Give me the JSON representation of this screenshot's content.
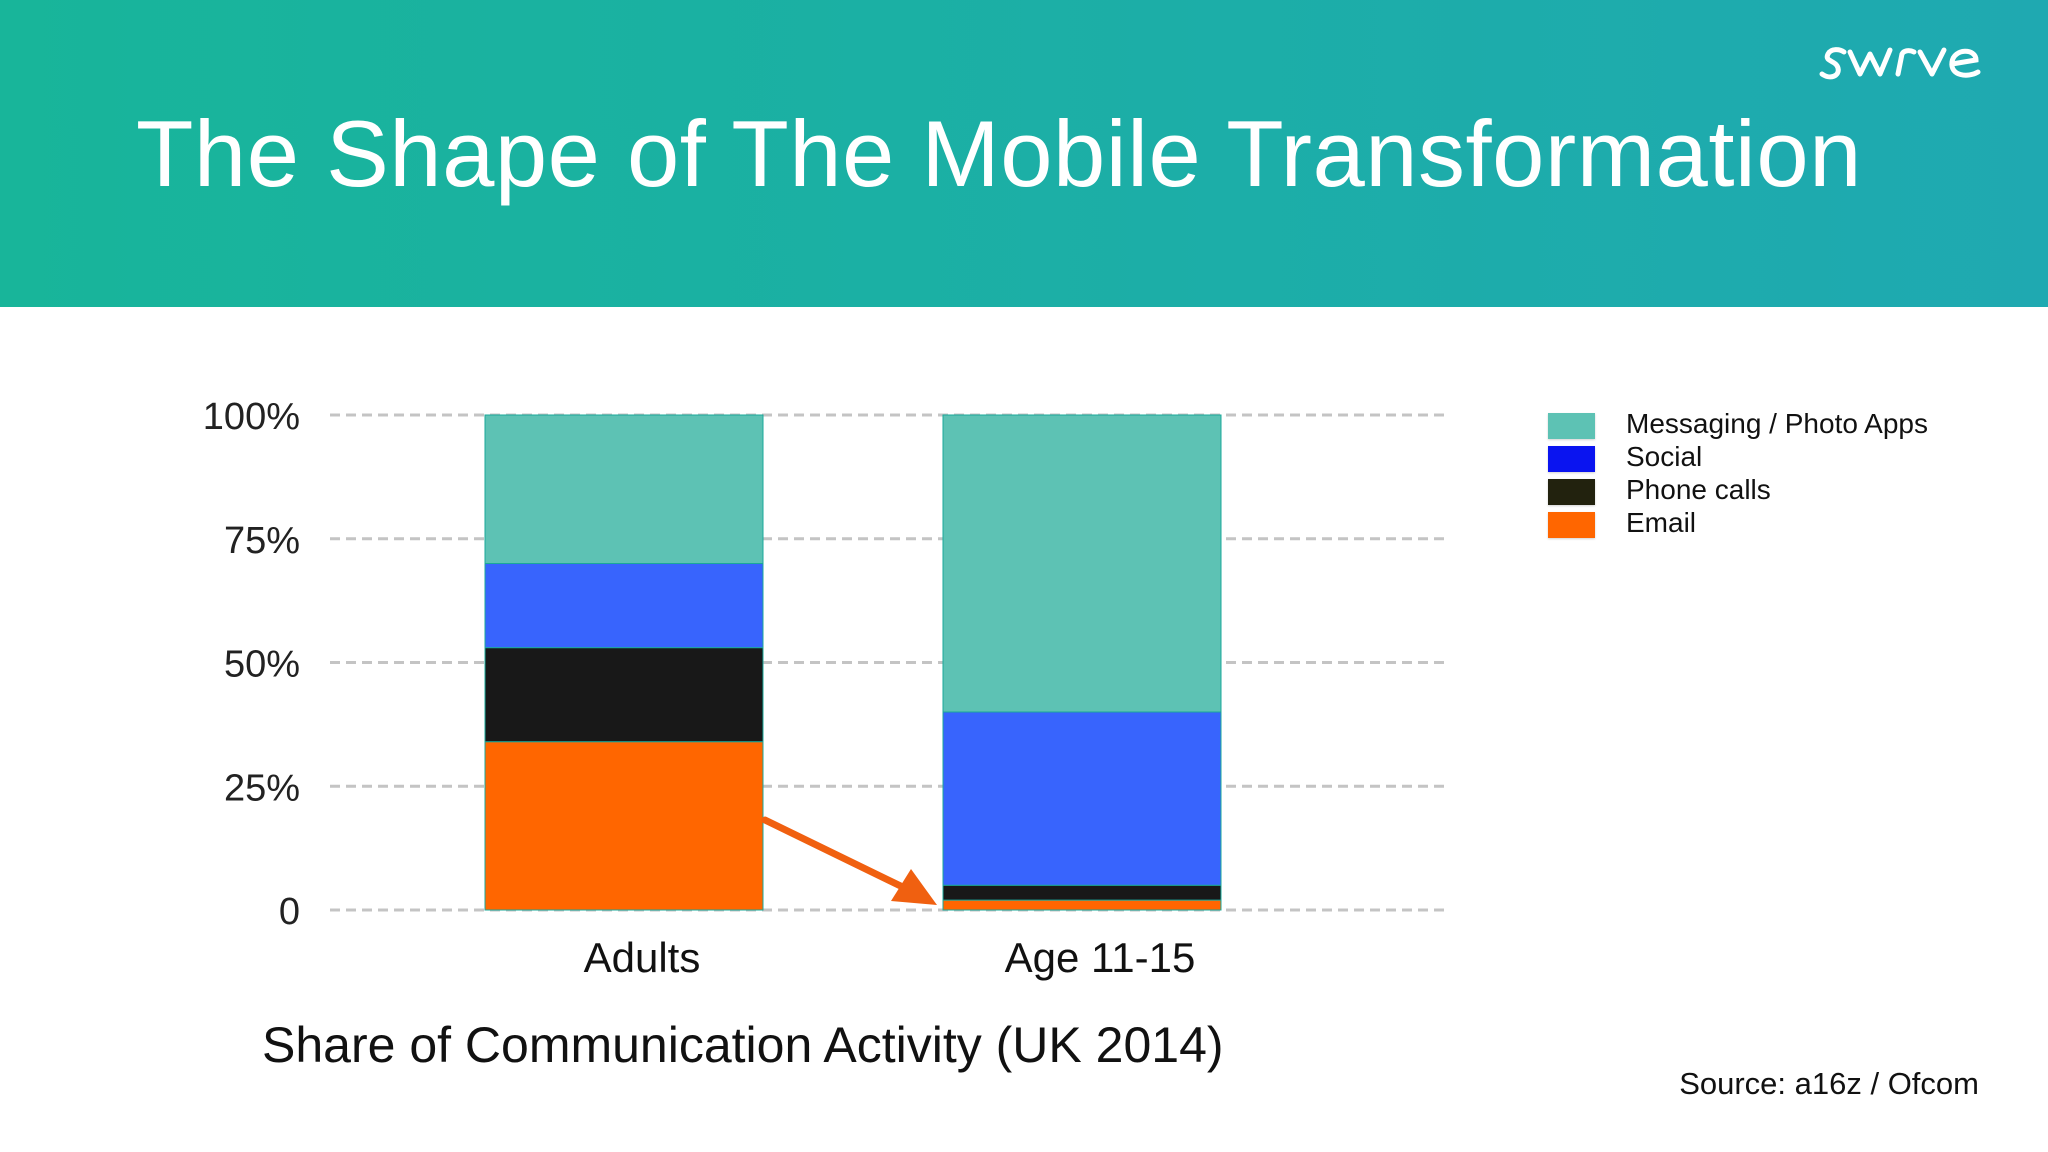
{
  "title": "The Shape of The Mobile Transformation",
  "logo_text": "swrve",
  "caption": "Share of Communication Activity (UK 2014)",
  "source": "Source: a16z / Ofcom",
  "colors": {
    "header_start": "#18b59a",
    "header_end": "#1fa9b1",
    "messaging": "#5dc2b4",
    "social": "#3864fd",
    "phone": "#181818",
    "email": "#ff6600",
    "arrow": "#f06010",
    "grid": "#c4c4c4"
  },
  "legend": [
    {
      "label": "Messaging / Photo Apps",
      "color": "#5dc2b4"
    },
    {
      "label": "Social",
      "color": "#0a14f0"
    },
    {
      "label": "Phone calls",
      "color": "#22220e"
    },
    {
      "label": "Email",
      "color": "#ff6600"
    }
  ],
  "chart_data": {
    "type": "bar",
    "stacked": true,
    "categories": [
      "Adults",
      "Age 11-15"
    ],
    "series": [
      {
        "name": "Email",
        "values": [
          34,
          2
        ]
      },
      {
        "name": "Phone calls",
        "values": [
          19,
          3
        ]
      },
      {
        "name": "Social",
        "values": [
          17,
          35
        ]
      },
      {
        "name": "Messaging / Photo Apps",
        "values": [
          30,
          60
        ]
      }
    ],
    "ylim": [
      0,
      100
    ],
    "yticks": [
      {
        "value": 0,
        "label": "0"
      },
      {
        "value": 25,
        "label": "25%"
      },
      {
        "value": 50,
        "label": "50%"
      },
      {
        "value": 75,
        "label": "75%"
      },
      {
        "value": 100,
        "label": "100%"
      }
    ],
    "grid": true,
    "legend_position": "right",
    "annotation": "arrow from Adults Email to Age 11-15 Email"
  }
}
